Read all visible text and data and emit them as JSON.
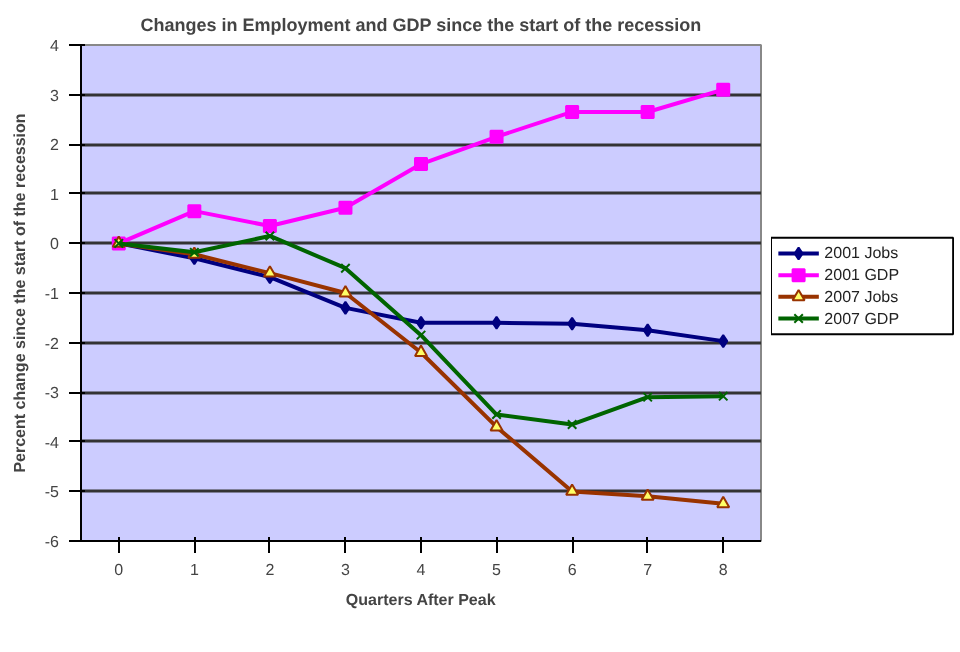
{
  "chart_data": {
    "type": "line",
    "title": "Changes in Employment and GDP since the start of the recession",
    "xlabel": "Quarters After Peak",
    "ylabel": "Percent change since the start of the recession",
    "categories": [
      "0",
      "1",
      "2",
      "3",
      "4",
      "5",
      "6",
      "7",
      "8"
    ],
    "ylim": [
      -6,
      4
    ],
    "yticks": [
      -6,
      -5,
      -4,
      -3,
      -2,
      -1,
      0,
      1,
      2,
      3,
      4
    ],
    "grid": "y",
    "legend": "right",
    "series": [
      {
        "name": "2001 Jobs",
        "color": "#000080",
        "marker": "diamond",
        "values": [
          0,
          -0.3,
          -0.68,
          -1.3,
          -1.6,
          -1.6,
          -1.62,
          -1.75,
          -1.97
        ]
      },
      {
        "name": "2001 GDP",
        "color": "#ff00ff",
        "marker": "square",
        "values": [
          0,
          0.65,
          0.35,
          0.72,
          1.6,
          2.15,
          2.65,
          2.65,
          3.1
        ]
      },
      {
        "name": "2007 Jobs",
        "color": "#993300",
        "marker": "triangle",
        "values": [
          0,
          -0.22,
          -0.6,
          -1.0,
          -2.2,
          -3.7,
          -5.0,
          -5.1,
          -5.25
        ]
      },
      {
        "name": "2007 GDP",
        "color": "#006400",
        "marker": "cross",
        "values": [
          0,
          -0.18,
          0.15,
          -0.5,
          -1.85,
          -3.45,
          -3.65,
          -3.1,
          -3.08
        ]
      }
    ]
  }
}
